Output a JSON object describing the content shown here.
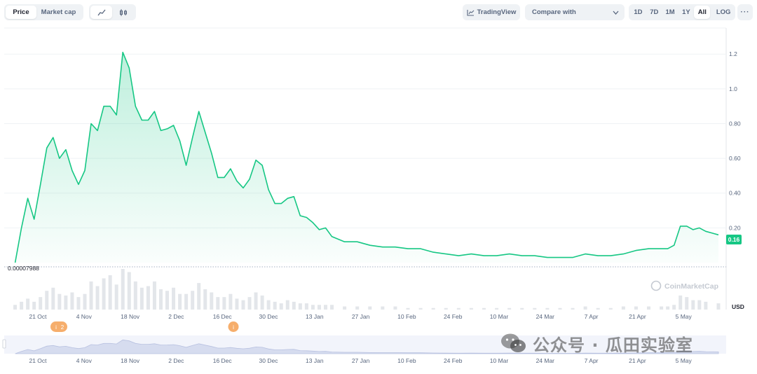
{
  "toolbar": {
    "price_label": "Price",
    "marketcap_label": "Market cap",
    "tradingview_label": "TradingView",
    "compare_label": "Compare with",
    "ranges": [
      "1D",
      "7D",
      "1M",
      "1Y",
      "All"
    ],
    "active_range": "All",
    "log_label": "LOG",
    "more_label": "···"
  },
  "chart_data": {
    "type": "area",
    "currency": "USD",
    "y_axis_ticks": [
      0.2,
      0.4,
      0.6,
      0.8,
      1.0,
      1.2
    ],
    "y_axis_tick_labels": [
      "0.20",
      "0.40",
      "0.60",
      "0.80",
      "1.0",
      "1.2"
    ],
    "ylim": [
      0,
      1.35
    ],
    "baseline_label": "0.00007988",
    "current_price_label": "0.16",
    "x_tick_labels": [
      "21 Oct",
      "4 Nov",
      "18 Nov",
      "2 Dec",
      "16 Dec",
      "30 Dec",
      "13 Jan",
      "27 Jan",
      "10 Feb",
      "24 Feb",
      "10 Mar",
      "24 Mar",
      "7 Apr",
      "21 Apr",
      "5 May"
    ],
    "x": [
      0,
      2,
      4,
      6,
      8,
      10,
      12,
      14,
      16,
      18,
      20,
      22,
      24,
      26,
      28,
      30,
      32,
      34,
      36,
      38,
      40,
      42,
      44,
      46,
      48,
      50,
      52,
      54,
      56,
      58,
      60,
      62,
      64,
      66,
      68,
      70,
      72,
      74,
      76,
      78,
      80,
      82,
      84,
      86,
      88,
      90,
      92,
      94,
      96,
      98,
      100,
      104,
      108,
      112,
      116,
      120,
      124,
      128,
      132,
      136,
      140,
      144,
      148,
      152,
      156,
      160,
      164,
      168,
      172,
      176,
      180,
      184,
      188,
      192,
      196,
      200,
      204,
      206,
      208,
      210,
      212,
      214,
      216,
      218,
      222
    ],
    "values": [
      0.0,
      0.2,
      0.37,
      0.25,
      0.45,
      0.66,
      0.72,
      0.6,
      0.65,
      0.53,
      0.45,
      0.53,
      0.8,
      0.76,
      0.9,
      0.9,
      0.85,
      1.21,
      1.12,
      0.9,
      0.82,
      0.82,
      0.87,
      0.76,
      0.77,
      0.79,
      0.7,
      0.56,
      0.72,
      0.87,
      0.75,
      0.63,
      0.49,
      0.49,
      0.54,
      0.47,
      0.43,
      0.48,
      0.59,
      0.56,
      0.42,
      0.34,
      0.34,
      0.37,
      0.38,
      0.27,
      0.26,
      0.23,
      0.19,
      0.2,
      0.15,
      0.12,
      0.12,
      0.1,
      0.09,
      0.09,
      0.08,
      0.08,
      0.06,
      0.05,
      0.04,
      0.05,
      0.04,
      0.04,
      0.05,
      0.04,
      0.04,
      0.03,
      0.03,
      0.03,
      0.05,
      0.04,
      0.04,
      0.05,
      0.07,
      0.08,
      0.08,
      0.08,
      0.1,
      0.21,
      0.21,
      0.19,
      0.2,
      0.18,
      0.16
    ],
    "volume": [
      3,
      5,
      7,
      5,
      8,
      12,
      14,
      10,
      9,
      11,
      8,
      10,
      18,
      15,
      20,
      22,
      16,
      26,
      24,
      18,
      14,
      15,
      18,
      13,
      12,
      14,
      10,
      10,
      12,
      17,
      13,
      11,
      8,
      8,
      10,
      7,
      6,
      8,
      11,
      9,
      6,
      5,
      4,
      6,
      5,
      4,
      4,
      3,
      3,
      3,
      3,
      2,
      2,
      2,
      2,
      2,
      1,
      1,
      1,
      1,
      1,
      1,
      1,
      1,
      1,
      1,
      1,
      1,
      1,
      1,
      2,
      1,
      1,
      2,
      2,
      2,
      2,
      2,
      3,
      9,
      8,
      6,
      6,
      5,
      4
    ],
    "x_domain": [
      -3,
      224
    ],
    "events": [
      "2",
      "i"
    ],
    "watermark": "CoinMarketCap",
    "grid": true
  },
  "overlay_watermark": "公众号 · 瓜田实验室"
}
